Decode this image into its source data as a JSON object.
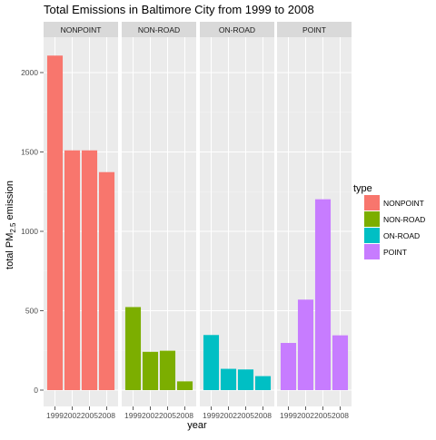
{
  "chart_data": {
    "type": "bar",
    "title": "Total Emissions in Baltimore City from 1999 to 2008",
    "xlabel": "year",
    "ylabel_main": "total PM",
    "ylabel_sub": "2.5",
    "ylabel_tail": " emission",
    "categories": [
      "1999",
      "2002",
      "2005",
      "2008"
    ],
    "ylim": [
      0,
      2200
    ],
    "yticks": [
      0,
      500,
      1000,
      1500,
      2000
    ],
    "grid": true,
    "legend": {
      "title": "type",
      "placement": "right"
    },
    "facets": [
      {
        "name": "NONPOINT",
        "color": "#F8766D",
        "values": [
          2107,
          1510,
          1510,
          1373
        ]
      },
      {
        "name": "NON-ROAD",
        "color": "#7CAE00",
        "values": [
          523,
          241,
          248,
          55
        ]
      },
      {
        "name": "ON-ROAD",
        "color": "#00BFC4",
        "values": [
          347,
          134,
          130,
          88
        ]
      },
      {
        "name": "POINT",
        "color": "#C77CFF",
        "values": [
          297,
          570,
          1202,
          345
        ]
      }
    ]
  }
}
